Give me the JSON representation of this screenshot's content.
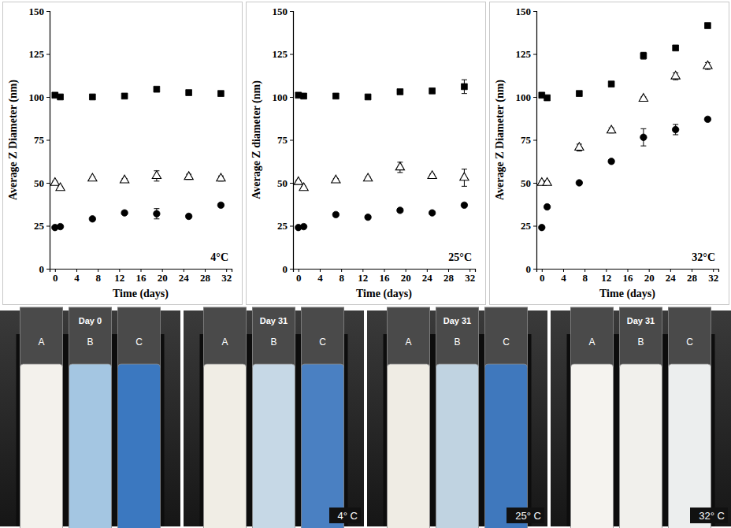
{
  "chart_data": [
    {
      "type": "scatter",
      "annotation": "4°C",
      "x_label": "Time (days)",
      "y_label": "Average Z Diameter (nm)",
      "x": [
        0,
        1,
        7,
        13,
        19,
        25,
        31
      ],
      "xlim": [
        -1,
        33
      ],
      "xticks": [
        0,
        4,
        8,
        12,
        16,
        20,
        24,
        28,
        32
      ],
      "ylim": [
        0,
        150
      ],
      "yticks": [
        0,
        25,
        50,
        75,
        100,
        125,
        150
      ],
      "grid": false,
      "series": [
        {
          "color": "#000000",
          "marker": "square",
          "values": [
            101,
            100,
            100,
            100.5,
            104.5,
            102.5,
            102
          ],
          "errors": [
            1,
            0.5,
            0.5,
            0.5,
            1,
            0.8,
            1
          ]
        },
        {
          "color": "#000000",
          "marker": "triangle-open",
          "values": [
            50,
            47,
            52.5,
            51.5,
            54,
            53.5,
            52.5
          ],
          "errors": [
            1,
            1,
            1,
            1,
            3,
            1.5,
            1.5
          ]
        },
        {
          "color": "#000000",
          "marker": "circle",
          "values": [
            24,
            24.5,
            29,
            32.5,
            32,
            30.5,
            37
          ],
          "errors": [
            0.5,
            0.5,
            1,
            1,
            3,
            1,
            1
          ]
        }
      ]
    },
    {
      "type": "scatter",
      "annotation": "25°C",
      "x_label": "Time (days)",
      "y_label": "Average Z diameter (nm)",
      "x": [
        0,
        1,
        7,
        13,
        19,
        25,
        31
      ],
      "xlim": [
        -1,
        33
      ],
      "xticks": [
        0,
        4,
        8,
        12,
        16,
        20,
        24,
        28,
        32
      ],
      "ylim": [
        0,
        150
      ],
      "yticks": [
        0,
        25,
        50,
        75,
        100,
        125,
        150
      ],
      "grid": false,
      "series": [
        {
          "color": "#000000",
          "marker": "square",
          "values": [
            101,
            100.5,
            100.5,
            100,
            103,
            103.5,
            106
          ],
          "errors": [
            0.5,
            0.5,
            0.5,
            0.5,
            1,
            1,
            4
          ]
        },
        {
          "color": "#000000",
          "marker": "triangle-open",
          "values": [
            50.5,
            47,
            51.5,
            52.5,
            59,
            54,
            53
          ],
          "errors": [
            1,
            1,
            1,
            1,
            3,
            1,
            5
          ]
        },
        {
          "color": "#000000",
          "marker": "circle",
          "values": [
            24,
            24.5,
            31.5,
            30,
            34,
            32.5,
            37
          ],
          "errors": [
            0.5,
            0.5,
            1,
            1,
            1,
            1,
            1
          ]
        }
      ]
    },
    {
      "type": "scatter",
      "annotation": "32°C",
      "x_label": "Time (days)",
      "y_label": "Average Z Diameter (nm)",
      "x": [
        0,
        1,
        7,
        13,
        19,
        25,
        31
      ],
      "xlim": [
        -1,
        33
      ],
      "xticks": [
        0,
        4,
        8,
        12,
        16,
        20,
        24,
        28,
        32
      ],
      "ylim": [
        0,
        150
      ],
      "yticks": [
        0,
        25,
        50,
        75,
        100,
        125,
        150
      ],
      "grid": false,
      "series": [
        {
          "color": "#000000",
          "marker": "square",
          "values": [
            101,
            99.5,
            102,
            107.5,
            124,
            128.5,
            141.5
          ],
          "errors": [
            0.5,
            0.5,
            1,
            1,
            2,
            1,
            1
          ]
        },
        {
          "color": "#000000",
          "marker": "triangle-open",
          "values": [
            50,
            50,
            70.5,
            80.5,
            99,
            112,
            118
          ],
          "errors": [
            1,
            1,
            2,
            1.5,
            1,
            2,
            2
          ]
        },
        {
          "color": "#000000",
          "marker": "circle",
          "values": [
            24,
            36,
            50,
            62.5,
            76.5,
            81,
            87
          ],
          "errors": [
            0.5,
            0.5,
            1,
            1,
            5,
            3,
            1
          ]
        }
      ]
    }
  ],
  "photo_panels": [
    {
      "day": "Day 0",
      "tubes": [
        {
          "label": "A",
          "color": "#f3f1ec"
        },
        {
          "label": "B",
          "color": "#a4c6e2"
        },
        {
          "label": "C",
          "color": "#3b78c0"
        }
      ]
    },
    {
      "day": "Day 31",
      "temperature": "4° C",
      "tubes": [
        {
          "label": "A",
          "color": "#f0ede5"
        },
        {
          "label": "B",
          "color": "#c6d8e6"
        },
        {
          "label": "C",
          "color": "#4a80c2"
        }
      ]
    },
    {
      "day": "Day 31",
      "temperature": "25° C",
      "tubes": [
        {
          "label": "A",
          "color": "#efece4"
        },
        {
          "label": "B",
          "color": "#c0d3e1"
        },
        {
          "label": "C",
          "color": "#3f78bd"
        }
      ]
    },
    {
      "day": "Day 31",
      "temperature": "32° C",
      "tubes": [
        {
          "label": "A",
          "color": "#f5f3ef"
        },
        {
          "label": "B",
          "color": "#f1f0ec"
        },
        {
          "label": "C",
          "color": "#eceeee"
        }
      ]
    }
  ]
}
